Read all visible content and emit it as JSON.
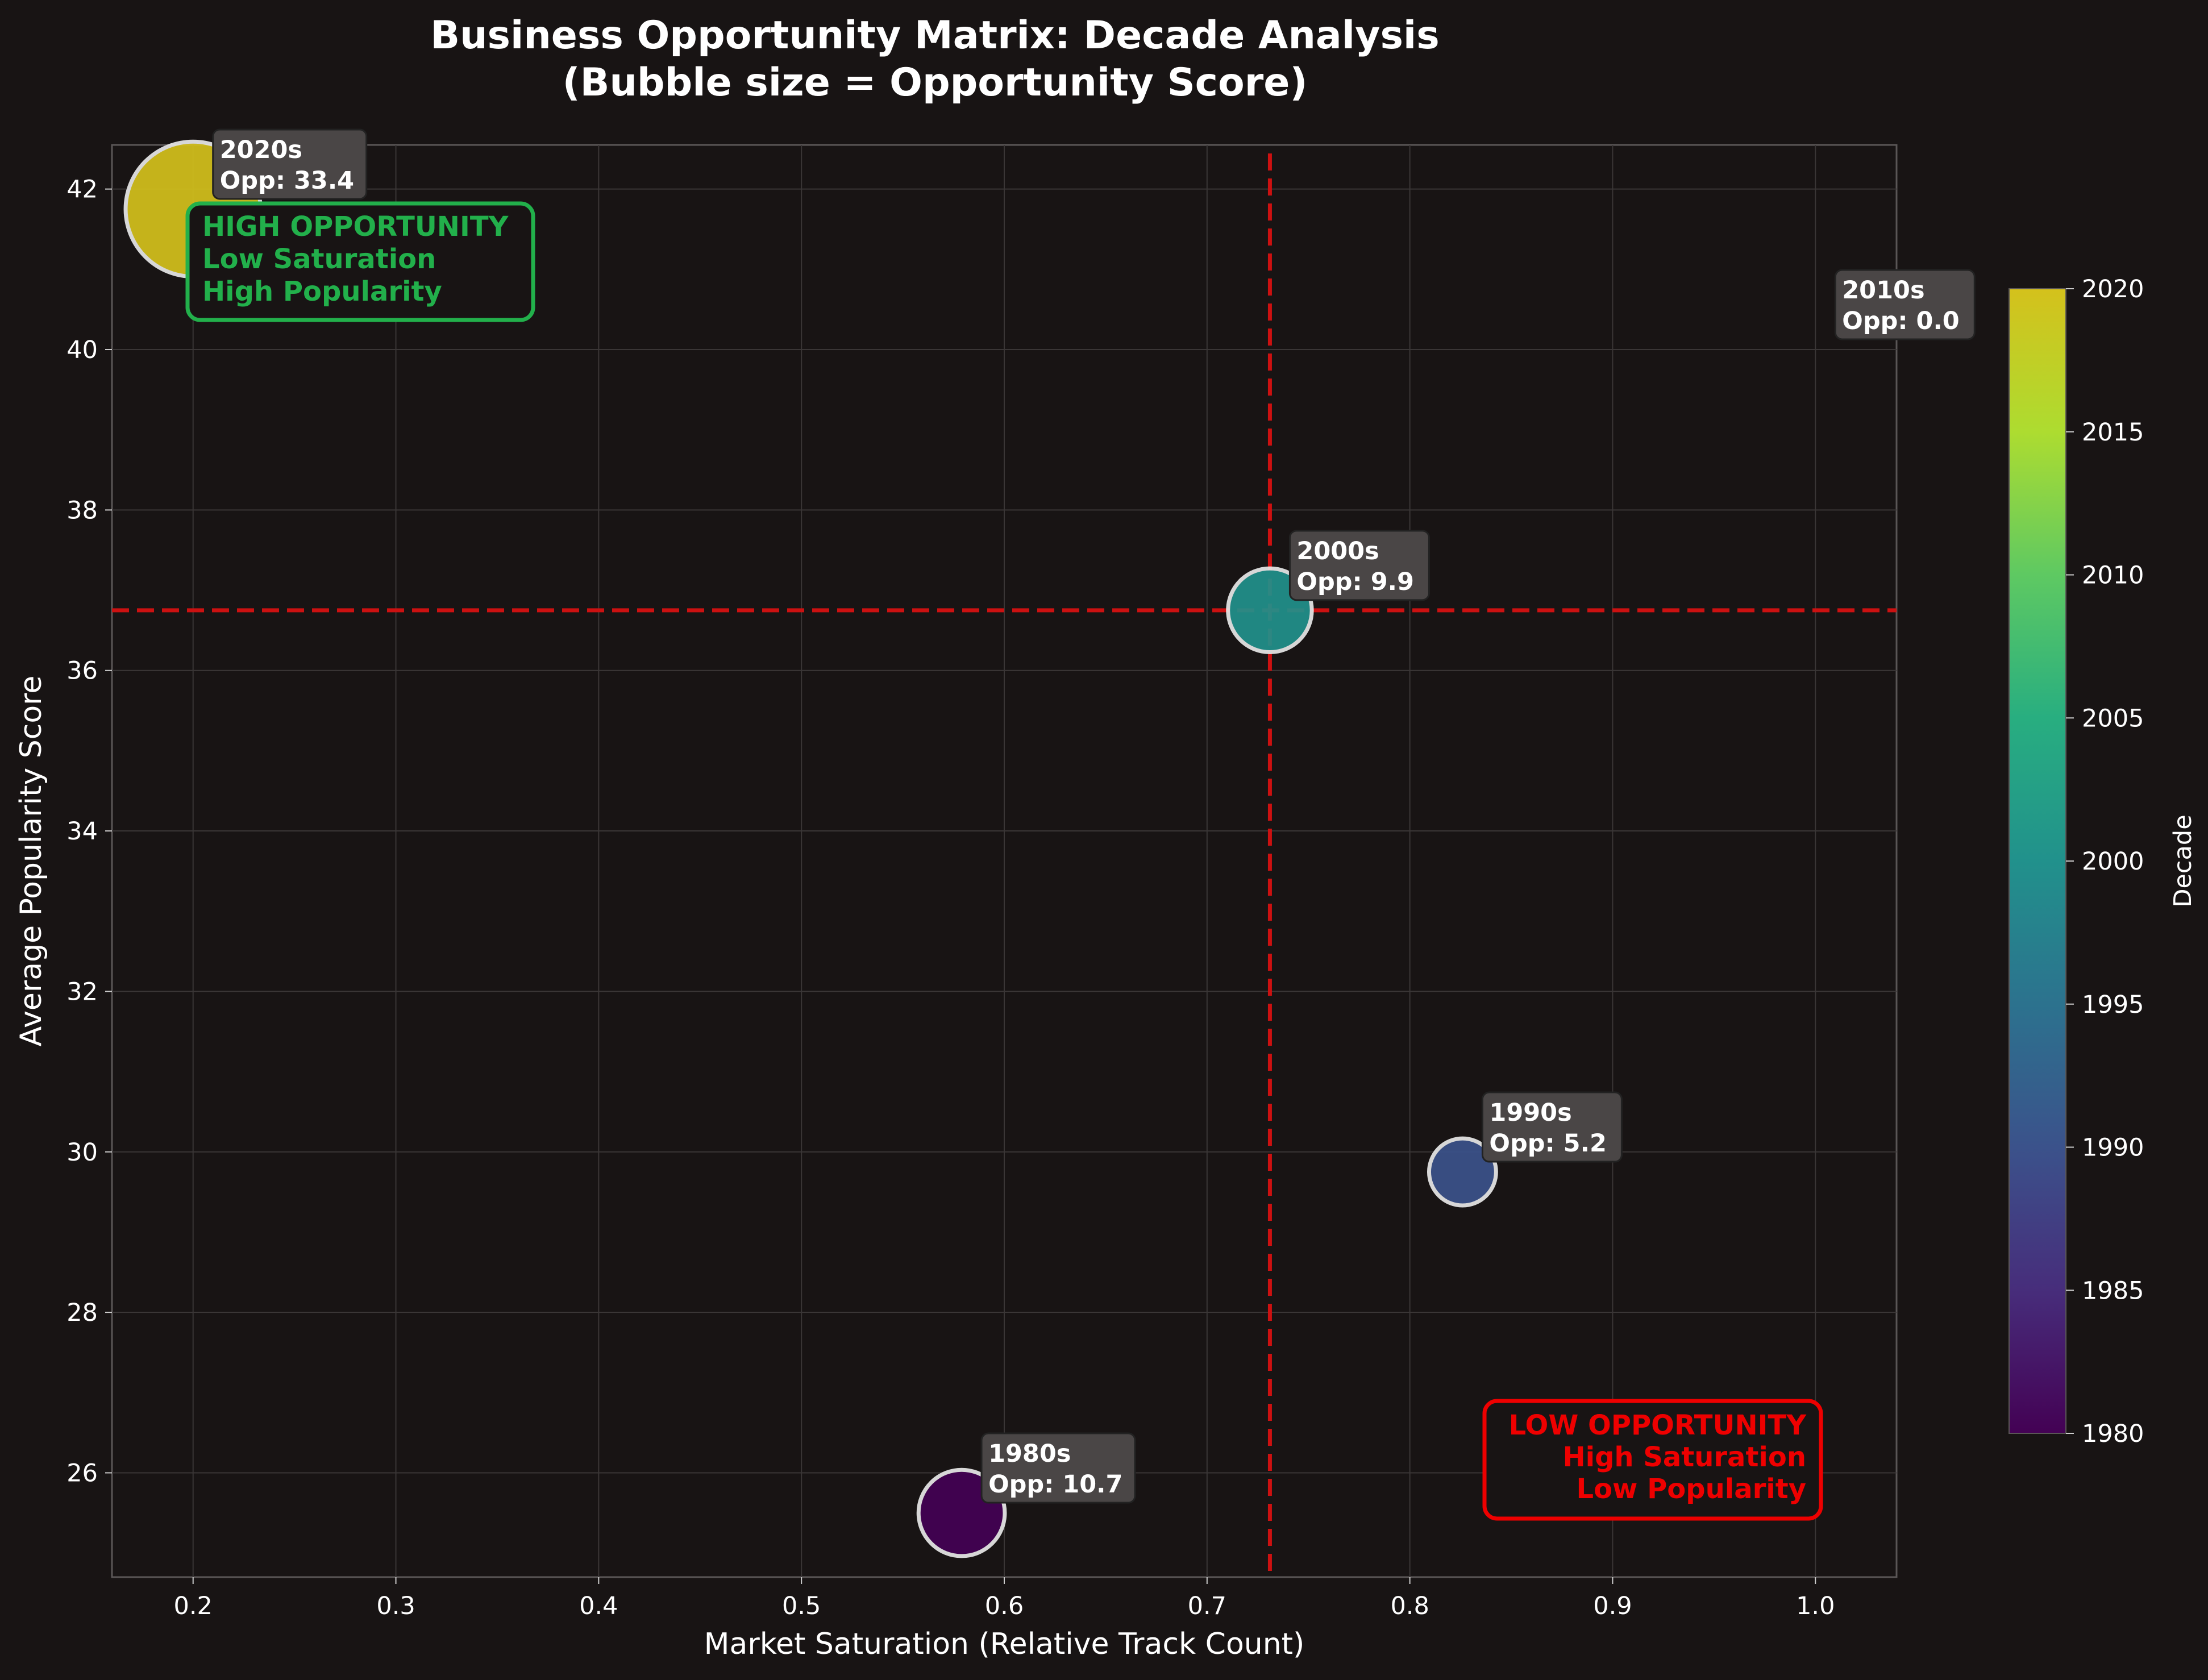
{
  "chart_data": {
    "type": "scatter",
    "title_lines": [
      "Business Opportunity Matrix: Decade Analysis",
      "(Bubble size = Opportunity Score)"
    ],
    "xlabel": "Market Saturation (Relative Track Count)",
    "ylabel": "Average Popularity Score",
    "xlim": [
      0.16,
      1.04
    ],
    "ylim": [
      24.7,
      42.55
    ],
    "x_ticks": [
      "0.2",
      "0.3",
      "0.4",
      "0.5",
      "0.6",
      "0.7",
      "0.8",
      "0.9",
      "1.0"
    ],
    "y_ticks": [
      "26",
      "28",
      "30",
      "32",
      "34",
      "36",
      "38",
      "40",
      "42"
    ],
    "grid": true,
    "reference_lines": {
      "x": 0.731,
      "y": 36.75,
      "color": "#cc1111"
    },
    "points": [
      {
        "decade": 1980,
        "label": "1980s",
        "opp_text": "Opp: 10.7",
        "x": 0.579,
        "y": 25.5,
        "opportunity": 10.7
      },
      {
        "decade": 1990,
        "label": "1990s",
        "opp_text": "Opp: 5.2",
        "x": 0.826,
        "y": 29.75,
        "opportunity": 5.2
      },
      {
        "decade": 2000,
        "label": "2000s",
        "opp_text": "Opp: 9.9",
        "x": 0.731,
        "y": 36.75,
        "opportunity": 9.9
      },
      {
        "decade": 2010,
        "label": "2010s",
        "opp_text": "Opp: 0.0",
        "x": 1.0,
        "y": 40.0,
        "opportunity": 0.0
      },
      {
        "decade": 2020,
        "label": "2020s",
        "opp_text": "Opp: 33.4",
        "x": 0.2,
        "y": 41.75,
        "opportunity": 33.4
      }
    ],
    "quadrant_labels": [
      {
        "lines": [
          "HIGH OPPORTUNITY",
          "Low Saturation",
          "High Popularity"
        ],
        "color": "#22b04b",
        "align": "start"
      },
      {
        "lines": [
          "LOW OPPORTUNITY",
          "High Saturation",
          "Low Popularity"
        ],
        "color": "#ee0000",
        "align": "end"
      }
    ],
    "colorbar": {
      "label": "Decade",
      "range": [
        1980,
        2020
      ],
      "ticks": [
        "1980",
        "1985",
        "1990",
        "1995",
        "2000",
        "2005",
        "2010",
        "2015",
        "2020"
      ],
      "colormap": "viridis"
    }
  }
}
